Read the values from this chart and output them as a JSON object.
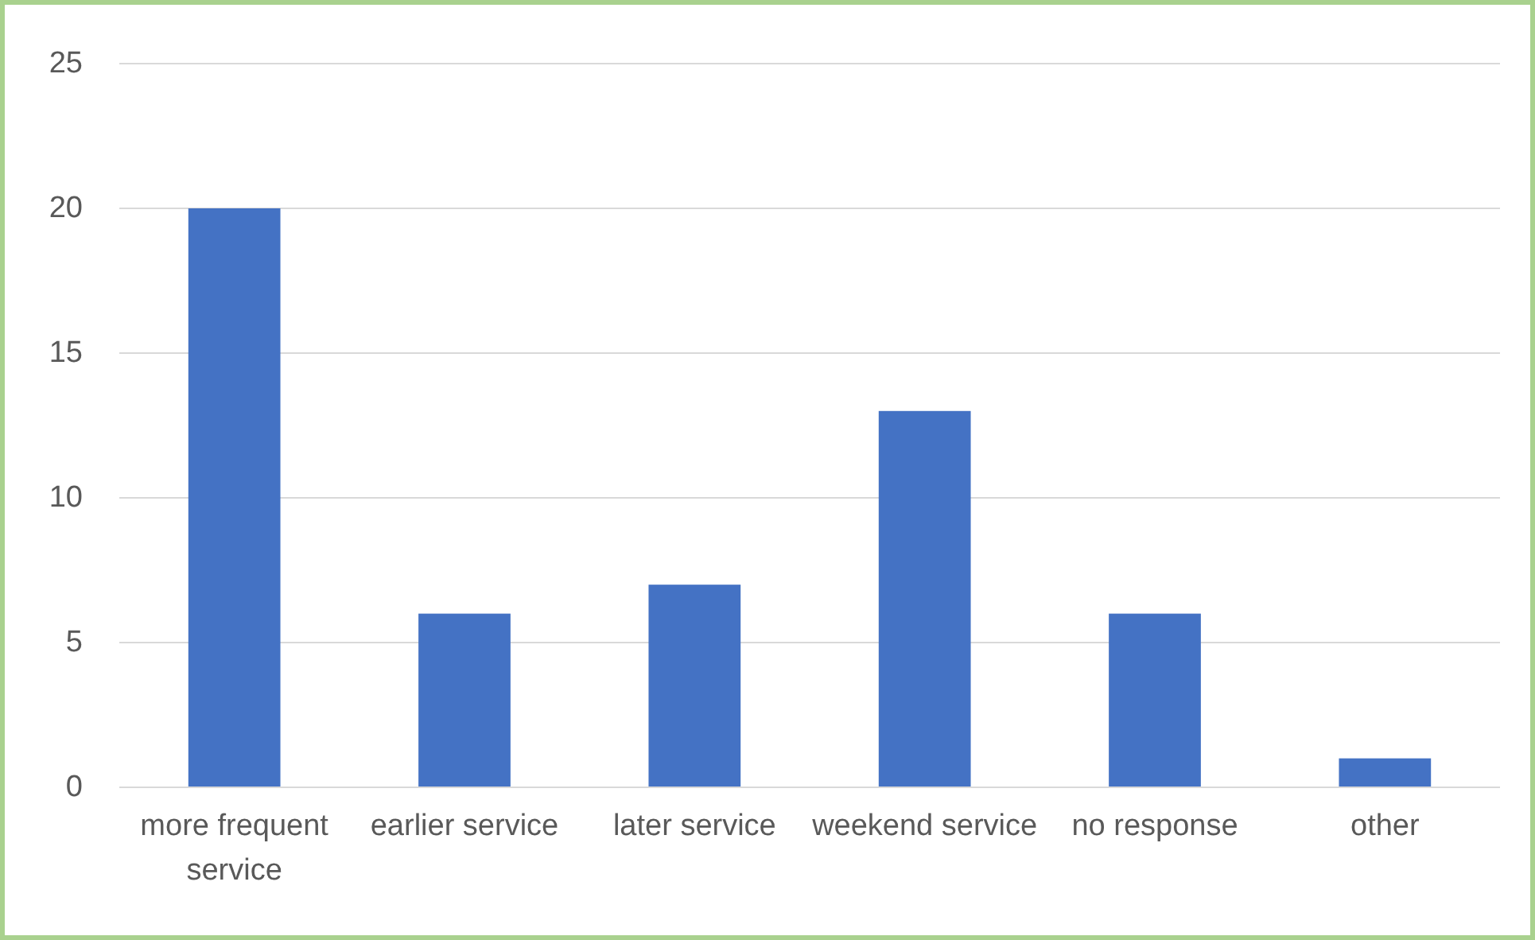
{
  "chart_data": {
    "type": "bar",
    "categories": [
      "more frequent service",
      "earlier service",
      "later service",
      "weekend service",
      "no response",
      "other"
    ],
    "values": [
      20,
      6,
      7,
      13,
      6,
      1
    ],
    "color": "#4472c4",
    "ylim": [
      0,
      25
    ],
    "yticks": [
      0,
      5,
      10,
      15,
      20,
      25
    ],
    "grid": "y"
  }
}
